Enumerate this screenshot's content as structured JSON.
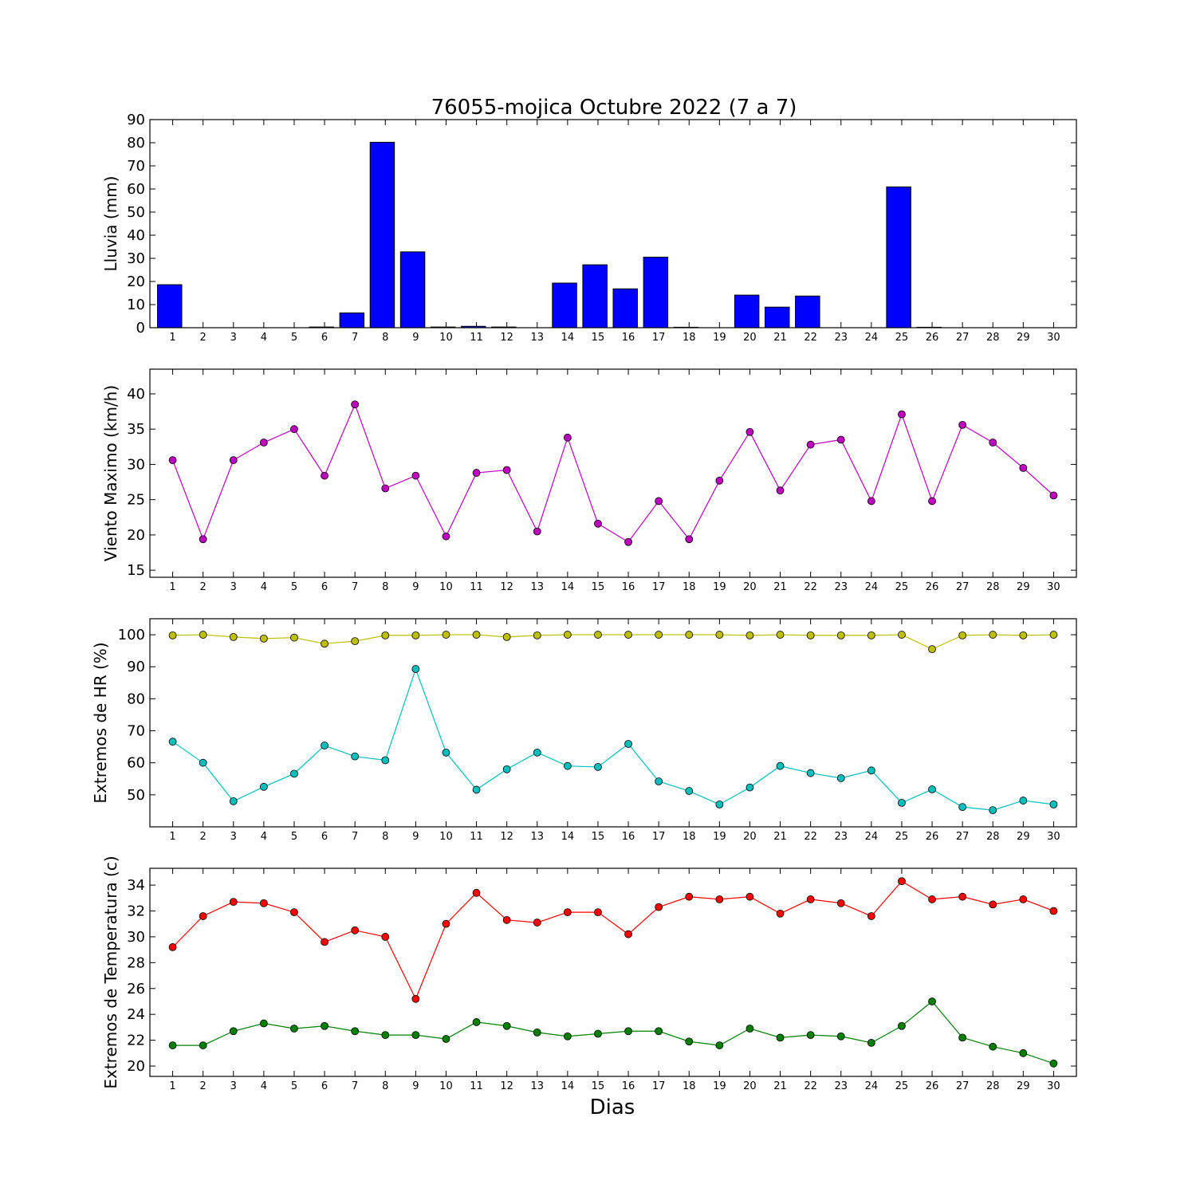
{
  "title": "76055-mojica Octubre 2022  (7 a 7)",
  "xlabel": "Dias",
  "chart_data": [
    {
      "type": "bar",
      "ylabel": "Lluvia (mm)",
      "ylim": [
        0,
        90
      ],
      "yticks": [
        0,
        10,
        20,
        30,
        40,
        50,
        60,
        70,
        80,
        90
      ],
      "x": [
        1,
        2,
        3,
        4,
        5,
        6,
        7,
        8,
        9,
        10,
        11,
        12,
        13,
        14,
        15,
        16,
        17,
        18,
        19,
        20,
        21,
        22,
        23,
        24,
        25,
        26,
        27,
        28,
        29,
        30
      ],
      "color": "#0000ff",
      "values": [
        18.6,
        0,
        0,
        0,
        0,
        0.3,
        6.4,
        80.2,
        32.8,
        0.3,
        0.6,
        0.3,
        0,
        19.3,
        27.2,
        16.8,
        30.5,
        0.2,
        0,
        14.1,
        8.9,
        13.7,
        0,
        0,
        60.9,
        0.2,
        0,
        0,
        0,
        0
      ]
    },
    {
      "type": "line",
      "ylabel": "Viento Maximo (km/h)",
      "ylim": [
        14,
        43.5
      ],
      "yticks": [
        15,
        20,
        25,
        30,
        35,
        40
      ],
      "x": [
        1,
        2,
        3,
        4,
        5,
        6,
        7,
        8,
        9,
        10,
        11,
        12,
        13,
        14,
        15,
        16,
        17,
        18,
        19,
        20,
        21,
        22,
        23,
        24,
        25,
        26,
        27,
        28,
        29,
        30
      ],
      "series": [
        {
          "color": "#bf00bf",
          "values": [
            30.6,
            19.4,
            30.6,
            33.1,
            35,
            28.4,
            38.5,
            26.6,
            28.4,
            19.8,
            28.8,
            29.2,
            20.5,
            33.8,
            21.6,
            19,
            24.8,
            19.4,
            27.7,
            34.6,
            26.3,
            32.8,
            33.5,
            24.8,
            37.1,
            24.8,
            35.6,
            33.1,
            29.5,
            25.6
          ]
        }
      ]
    },
    {
      "type": "line",
      "ylabel": "Extremos de HR (%)",
      "ylim": [
        40,
        105
      ],
      "yticks": [
        50,
        60,
        70,
        80,
        90,
        100
      ],
      "x": [
        1,
        2,
        3,
        4,
        5,
        6,
        7,
        8,
        9,
        10,
        11,
        12,
        13,
        14,
        15,
        16,
        17,
        18,
        19,
        20,
        21,
        22,
        23,
        24,
        25,
        26,
        27,
        28,
        29,
        30
      ],
      "series": [
        {
          "color": "#bfbf00",
          "values": [
            99.8,
            100,
            99.3,
            98.8,
            99.1,
            97.2,
            98,
            99.8,
            99.8,
            100,
            100,
            99.3,
            99.8,
            100,
            100,
            100,
            100,
            100,
            100,
            99.8,
            100,
            99.8,
            99.8,
            99.8,
            100,
            95.5,
            99.8,
            100,
            99.8,
            100
          ]
        },
        {
          "color": "#00bfbf",
          "values": [
            66.6,
            60,
            48,
            52.5,
            56.6,
            65.4,
            62,
            60.8,
            89.3,
            63.2,
            51.6,
            58,
            63.2,
            59,
            58.7,
            65.9,
            54.2,
            51.2,
            47,
            52.3,
            59,
            56.8,
            55.2,
            57.6,
            47.5,
            51.7,
            46.2,
            45.2,
            48.2,
            47
          ]
        }
      ]
    },
    {
      "type": "line",
      "ylabel": "Extremos de Temperatura (c)",
      "ylim": [
        19.2,
        35.3
      ],
      "yticks": [
        20,
        22,
        24,
        26,
        28,
        30,
        32,
        34
      ],
      "x": [
        1,
        2,
        3,
        4,
        5,
        6,
        7,
        8,
        9,
        10,
        11,
        12,
        13,
        14,
        15,
        16,
        17,
        18,
        19,
        20,
        21,
        22,
        23,
        24,
        25,
        26,
        27,
        28,
        29,
        30
      ],
      "series": [
        {
          "color": "#ff0000",
          "values": [
            29.2,
            31.6,
            32.7,
            32.6,
            31.9,
            29.6,
            30.5,
            30,
            25.2,
            31,
            33.4,
            31.3,
            31.1,
            31.9,
            31.9,
            30.2,
            32.3,
            33.1,
            32.9,
            33.1,
            31.8,
            32.9,
            32.6,
            31.6,
            34.3,
            32.9,
            33.1,
            32.5,
            32.9,
            32
          ]
        },
        {
          "color": "#008000",
          "values": [
            21.6,
            21.6,
            22.7,
            23.3,
            22.9,
            23.1,
            22.7,
            22.4,
            22.4,
            22.1,
            23.4,
            23.1,
            22.6,
            22.3,
            22.5,
            22.7,
            22.7,
            21.9,
            21.6,
            22.9,
            22.2,
            22.4,
            22.3,
            21.8,
            23.1,
            25,
            22.2,
            21.5,
            21,
            20.2
          ]
        }
      ]
    }
  ]
}
